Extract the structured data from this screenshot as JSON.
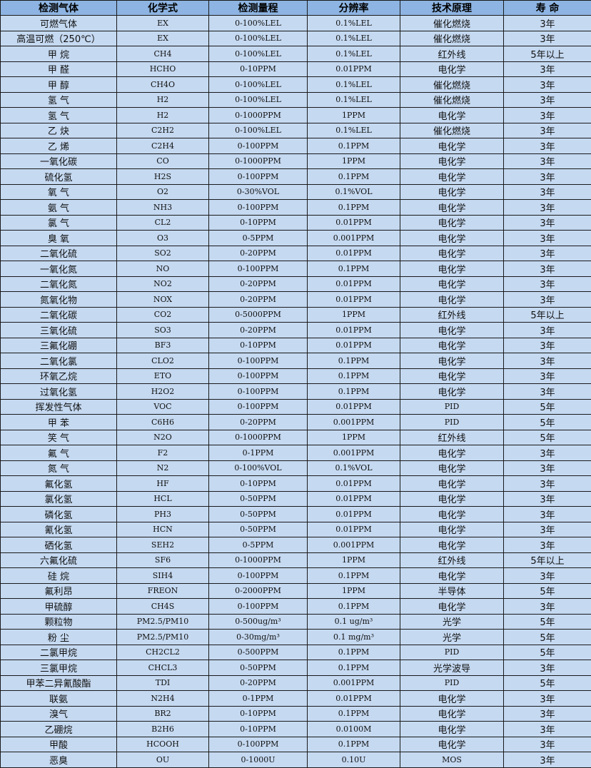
{
  "headers": [
    "检测气体",
    "化学式",
    "检测量程",
    "分辨率",
    "技术原理",
    "寿 命"
  ],
  "rows": [
    [
      "可燃气体",
      "EX",
      "0-100%LEL",
      "0.1%LEL",
      "催化燃烧",
      "3年"
    ],
    [
      "高温可燃（250℃）",
      "EX",
      "0-100%LEL",
      "0.1%LEL",
      "催化燃烧",
      "3年"
    ],
    [
      "甲 烷",
      "CH4",
      "0-100%LEL",
      "0.1%LEL",
      "红外线",
      "5年以上"
    ],
    [
      "甲 醛",
      "HCHO",
      "0-10PPM",
      "0.01PPM",
      "电化学",
      "3年"
    ],
    [
      "甲 醇",
      "CH4O",
      "0-100%LEL",
      "0.1%LEL",
      "催化燃烧",
      "3年"
    ],
    [
      "氢 气",
      "H2",
      "0-100%LEL",
      "0.1%LEL",
      "催化燃烧",
      "3年"
    ],
    [
      "氢 气",
      "H2",
      "0-1000PPM",
      "1PPM",
      "电化学",
      "3年"
    ],
    [
      "乙 炔",
      "C2H2",
      "0-100%LEL",
      "0.1%LEL",
      "催化燃烧",
      "3年"
    ],
    [
      "乙 烯",
      "C2H4",
      "0-100PPM",
      "0.1PPM",
      "电化学",
      "3年"
    ],
    [
      "一氧化碳",
      "CO",
      "0-1000PPM",
      "1PPM",
      "电化学",
      "3年"
    ],
    [
      "硫化氢",
      "H2S",
      "0-100PPM",
      "0.1PPM",
      "电化学",
      "3年"
    ],
    [
      "氧 气",
      "O2",
      "0-30%VOL",
      "0.1%VOL",
      "电化学",
      "3年"
    ],
    [
      "氨 气",
      "NH3",
      "0-100PPM",
      "0.1PPM",
      "电化学",
      "3年"
    ],
    [
      "氯 气",
      "CL2",
      "0-10PPM",
      "0.01PPM",
      "电化学",
      "3年"
    ],
    [
      "臭 氧",
      "O3",
      "0-5PPM",
      "0.001PPM",
      "电化学",
      "3年"
    ],
    [
      "二氧化硫",
      "SO2",
      "0-20PPM",
      "0.01PPM",
      "电化学",
      "3年"
    ],
    [
      "一氧化氮",
      "NO",
      "0-100PPM",
      "0.1PPM",
      "电化学",
      "3年"
    ],
    [
      "二氧化氮",
      "NO2",
      "0-20PPM",
      "0.01PPM",
      "电化学",
      "3年"
    ],
    [
      "氮氧化物",
      "NOX",
      "0-20PPM",
      "0.01PPM",
      "电化学",
      "3年"
    ],
    [
      "二氧化碳",
      "CO2",
      "0-5000PPM",
      "1PPM",
      "红外线",
      "5年以上"
    ],
    [
      "三氧化硫",
      "SO3",
      "0-20PPM",
      "0.01PPM",
      "电化学",
      "3年"
    ],
    [
      "三氟化硼",
      "BF3",
      "0-10PPM",
      "0.01PPM",
      "电化学",
      "3年"
    ],
    [
      "二氧化氯",
      "CLO2",
      "0-100PPM",
      "0.1PPM",
      "电化学",
      "3年"
    ],
    [
      "环氧乙烷",
      "ETO",
      "0-100PPM",
      "0.1PPM",
      "电化学",
      "3年"
    ],
    [
      "过氧化氢",
      "H2O2",
      "0-100PPM",
      "0.1PPM",
      "电化学",
      "3年"
    ],
    [
      "挥发性气体",
      "VOC",
      "0-100PPM",
      "0.01PPM",
      "PID",
      "5年"
    ],
    [
      "甲 苯",
      "C6H6",
      "0-20PPM",
      "0.001PPM",
      "PID",
      "5年"
    ],
    [
      "笑 气",
      "N2O",
      "0-1000PPM",
      "1PPM",
      "红外线",
      "5年"
    ],
    [
      "氟 气",
      "F2",
      "0-1PPM",
      "0.001PPM",
      "电化学",
      "3年"
    ],
    [
      "氮 气",
      "N2",
      "0-100%VOL",
      "0.1%VOL",
      "电化学",
      "3年"
    ],
    [
      "氟化氢",
      "HF",
      "0-10PPM",
      "0.01PPM",
      "电化学",
      "3年"
    ],
    [
      "氯化氢",
      "HCL",
      "0-50PPM",
      "0.01PPM",
      "电化学",
      "3年"
    ],
    [
      "磷化氢",
      "PH3",
      "0-50PPM",
      "0.01PPM",
      "电化学",
      "3年"
    ],
    [
      "氰化氢",
      "HCN",
      "0-50PPM",
      "0.01PPM",
      "电化学",
      "3年"
    ],
    [
      "硒化氢",
      "SEH2",
      "0-5PPM",
      "0.001PPM",
      "电化学",
      "3年"
    ],
    [
      "六氟化硫",
      "SF6",
      "0-1000PPM",
      "1PPM",
      "红外线",
      "5年以上"
    ],
    [
      "硅 烷",
      "SIH4",
      "0-100PPM",
      "0.1PPM",
      "电化学",
      "3年"
    ],
    [
      "氟利昂",
      "FREON",
      "0-2000PPM",
      "1PPM",
      "半导体",
      "5年"
    ],
    [
      "甲硫醇",
      "CH4S",
      "0-100PPM",
      "0.1PPM",
      "电化学",
      "3年"
    ],
    [
      "颗粒物",
      "PM2.5/PM10",
      "0-500ug/m³",
      "0.1 ug/m³",
      "光学",
      "5年"
    ],
    [
      "粉 尘",
      "PM2.5/PM10",
      "0-30mg/m³",
      "0.1 mg/m³",
      "光学",
      "5年"
    ],
    [
      "二氯甲烷",
      "CH2CL2",
      "0-500PPM",
      "0.1PPM",
      "PID",
      "5年"
    ],
    [
      "三氯甲烷",
      "CHCL3",
      "0-50PPM",
      "0.1PPM",
      "光学波导",
      "3年"
    ],
    [
      "甲苯二异氰酸酯",
      "TDI",
      "0-20PPM",
      "0.001PPM",
      "PID",
      "5年"
    ],
    [
      "联氨",
      "N2H4",
      "0-1PPM",
      "0.01PPM",
      "电化学",
      "3年"
    ],
    [
      "溴气",
      "BR2",
      "0-10PPM",
      "0.1PPM",
      "电化学",
      "3年"
    ],
    [
      "乙硼烷",
      "B2H6",
      "0-10PPM",
      "0.0100M",
      "电化学",
      "3年"
    ],
    [
      "甲酸",
      "HCOOH",
      "0-100PPM",
      "0.1PPM",
      "电化学",
      "3年"
    ],
    [
      "恶臭",
      "OU",
      "0-1000U",
      "0.10U",
      "MOS",
      "3年"
    ]
  ]
}
